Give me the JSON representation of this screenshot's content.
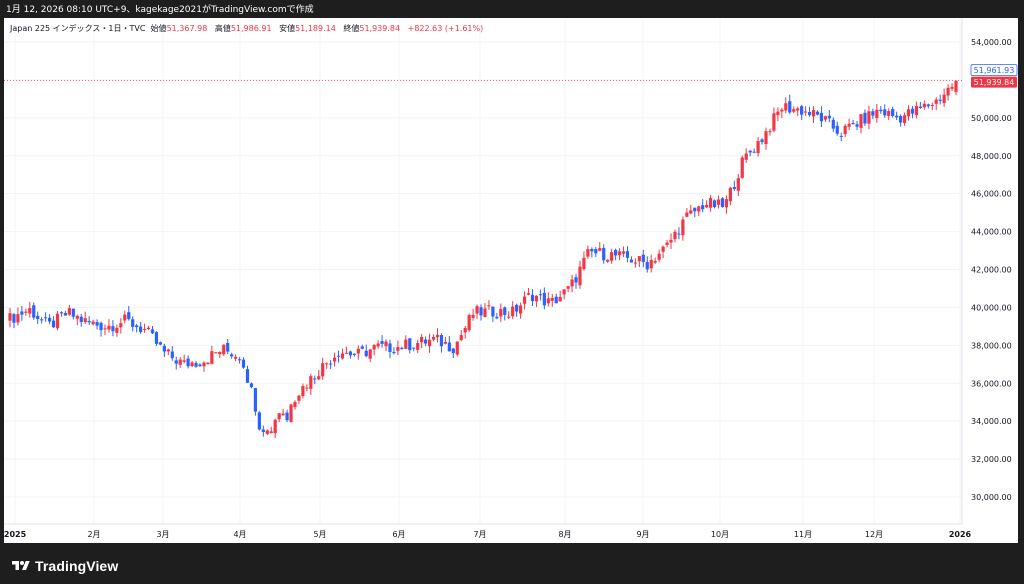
{
  "caption": "1月 12, 2026 08:10 UTC+9、kagekage2021がTradingView.comで作成",
  "legend": {
    "symbol": "Japan 225 インデックス・1日・TVC",
    "open_label": "始値",
    "open_value": "51,367.98",
    "high_label": "高値",
    "high_value": "51,986.91",
    "low_label": "安値",
    "low_value": "51,189.14",
    "close_label": "終値",
    "close_value": "51,939.84",
    "change": "+822.63 (+1.61%)"
  },
  "price_tags": {
    "prev": "51,961.93",
    "last": "51,939.84"
  },
  "footer": {
    "logo_text": "TradingView"
  },
  "colors": {
    "up": "#f23645",
    "down": "#2962ff",
    "grid": "#f0f3fa",
    "axis_text": "#131722"
  },
  "chart_data": {
    "type": "candlestick",
    "title": "Japan 225 インデックス・1日・TVC",
    "ylim": [
      29000,
      55000
    ],
    "y_ticks": [
      "54,000.00",
      "52,000.00",
      "50,000.00",
      "48,000.00",
      "46,000.00",
      "44,000.00",
      "42,000.00",
      "40,000.00",
      "38,000.00",
      "36,000.00",
      "34,000.00",
      "32,000.00",
      "30,000.00"
    ],
    "x_ticks": [
      "2025",
      "2月",
      "3月",
      "4月",
      "5月",
      "6月",
      "7月",
      "8月",
      "9月",
      "10月",
      "11月",
      "12月",
      "2026"
    ],
    "approximate_weekly_closes": {
      "x": [
        "2025-01",
        "2025-01",
        "2025-01",
        "2025-01",
        "2025-02",
        "2025-02",
        "2025-02",
        "2025-02",
        "2025-03",
        "2025-03",
        "2025-03",
        "2025-03",
        "2025-04",
        "2025-04",
        "2025-04",
        "2025-04",
        "2025-05",
        "2025-05",
        "2025-05",
        "2025-05",
        "2025-06",
        "2025-06",
        "2025-06",
        "2025-06",
        "2025-07",
        "2025-07",
        "2025-07",
        "2025-07",
        "2025-08",
        "2025-08",
        "2025-08",
        "2025-08",
        "2025-09",
        "2025-09",
        "2025-09",
        "2025-09",
        "2025-10",
        "2025-10",
        "2025-10",
        "2025-10",
        "2025-11",
        "2025-11",
        "2025-11",
        "2025-11",
        "2025-12",
        "2025-12",
        "2025-12",
        "2025-12",
        "2026-01",
        "2026-01"
      ],
      "close": [
        39400,
        39900,
        39000,
        39700,
        39200,
        39000,
        39300,
        38800,
        37600,
        37000,
        37200,
        37800,
        37400,
        33800,
        34500,
        35600,
        36700,
        37700,
        37500,
        37900,
        37900,
        38100,
        38300,
        37900,
        39700,
        39800,
        39700,
        40700,
        40200,
        41000,
        42900,
        42800,
        42600,
        42300,
        43200,
        44700,
        45500,
        45300,
        47800,
        49000,
        50600,
        50400,
        50000,
        49200,
        49800,
        50400,
        50000,
        50400,
        50900,
        51900
      ]
    }
  }
}
